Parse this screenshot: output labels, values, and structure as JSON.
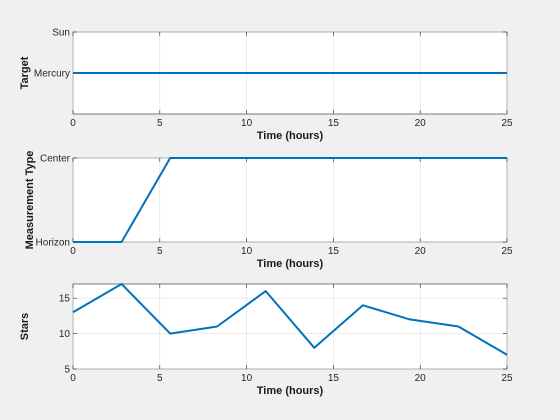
{
  "figure": {
    "background": "#f0f0f0",
    "line_color": "#0072bd"
  },
  "chart_data": [
    {
      "type": "line",
      "xlabel": "Time (hours)",
      "ylabel": "Target",
      "xlim": [
        0,
        25
      ],
      "ylim": [
        0,
        2
      ],
      "grid": true,
      "xticks": [
        0,
        5,
        10,
        15,
        20,
        25
      ],
      "xticklabels": [
        "0",
        "5",
        "10",
        "15",
        "20",
        "25"
      ],
      "yticks": [
        1,
        2
      ],
      "yticklabels": [
        "Mercury",
        "Sun"
      ],
      "series": [
        {
          "x": [
            0,
            25
          ],
          "y": [
            1,
            1
          ]
        }
      ]
    },
    {
      "type": "line",
      "xlabel": "Time (hours)",
      "ylabel": "Measurement Type",
      "xlim": [
        0,
        25
      ],
      "ylim": [
        0,
        1
      ],
      "grid": true,
      "xticks": [
        0,
        5,
        10,
        15,
        20,
        25
      ],
      "xticklabels": [
        "0",
        "5",
        "10",
        "15",
        "20",
        "25"
      ],
      "yticks": [
        0,
        1
      ],
      "yticklabels": [
        "Horizon",
        "Center"
      ],
      "series": [
        {
          "x": [
            0,
            2.8,
            5.6,
            25
          ],
          "y": [
            0,
            0,
            1,
            1
          ]
        }
      ]
    },
    {
      "type": "line",
      "xlabel": "Time (hours)",
      "ylabel": "Stars",
      "xlim": [
        0,
        25
      ],
      "ylim": [
        5,
        17
      ],
      "grid": true,
      "xticks": [
        0,
        5,
        10,
        15,
        20,
        25
      ],
      "xticklabels": [
        "0",
        "5",
        "10",
        "15",
        "20",
        "25"
      ],
      "yticks": [
        5,
        10,
        15
      ],
      "yticklabels": [
        "5",
        "10",
        "15"
      ],
      "series": [
        {
          "x": [
            0,
            2.8,
            5.6,
            8.3,
            11.1,
            13.9,
            16.7,
            19.4,
            22.2,
            25
          ],
          "y": [
            13,
            17,
            10,
            11,
            16,
            8,
            14,
            12,
            11,
            7
          ]
        }
      ]
    }
  ]
}
